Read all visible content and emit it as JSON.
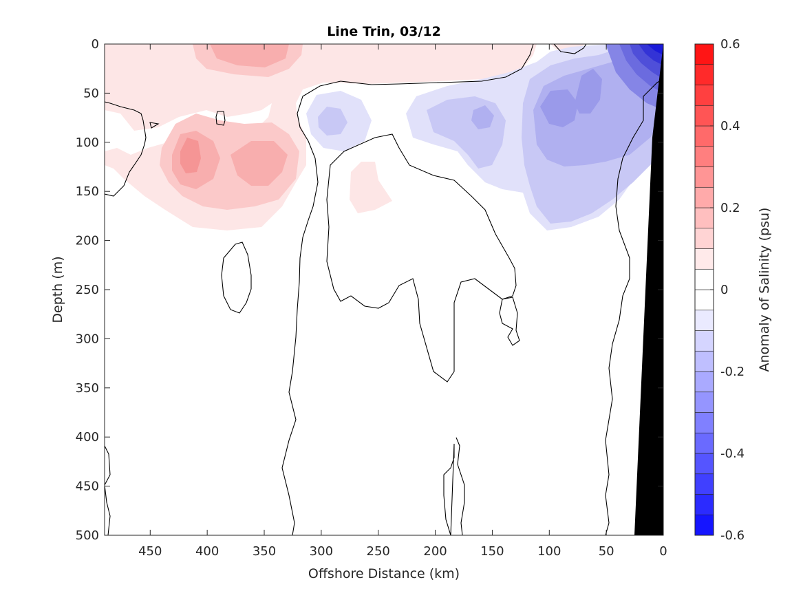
{
  "chart_data": {
    "type": "heatmap",
    "subtype": "filled-contour",
    "title": "Line Trin, 03/12",
    "xlabel": "Offshore Distance (km)",
    "ylabel": "Depth (m)",
    "x_direction": "reversed",
    "y_direction": "reversed",
    "xlim": [
      490,
      0
    ],
    "ylim": [
      0,
      500
    ],
    "x_ticks": [
      450,
      400,
      350,
      300,
      250,
      200,
      150,
      100,
      50,
      0
    ],
    "x_tick_labels": [
      "450",
      "400",
      "350",
      "300",
      "250",
      "200",
      "150",
      "100",
      "50",
      "0"
    ],
    "y_ticks": [
      0,
      50,
      100,
      150,
      200,
      250,
      300,
      350,
      400,
      450,
      500
    ],
    "y_tick_labels": [
      "0",
      "50",
      "100",
      "150",
      "200",
      "250",
      "300",
      "350",
      "400",
      "450",
      "500"
    ],
    "colorbar": {
      "label": "Anomaly of Salinity (psu)",
      "range": [
        -0.6,
        0.6
      ],
      "step": 0.05,
      "tick_values": [
        0.6,
        0.4,
        0.2,
        0,
        -0.2,
        -0.4,
        -0.6
      ],
      "tick_labels": [
        "0.6",
        "0.4",
        "0.2",
        "0",
        "-0.2",
        "-0.4",
        "-0.6"
      ],
      "colormap": "blue-white-red"
    },
    "features": [
      {
        "label": "positive anomaly near-surface band",
        "x_range": [
          490,
          130
        ],
        "depth_range": [
          0,
          30
        ],
        "value": 0.05
      },
      {
        "label": "positive anomaly core",
        "x_center": 410,
        "depth_center": 125,
        "value": 0.2
      },
      {
        "label": "positive anomaly core",
        "x_center": 350,
        "depth_center": 130,
        "value": 0.15
      },
      {
        "label": "positive anomaly surface core",
        "x_center": 360,
        "depth_center": 10,
        "value": 0.1
      },
      {
        "label": "positive anomaly patch",
        "x_center": 255,
        "depth_center": 150,
        "value": 0.05
      },
      {
        "label": "negative anomaly patch",
        "x_center": 290,
        "depth_center": 80,
        "value": -0.1
      },
      {
        "label": "negative anomaly patch",
        "x_center": 165,
        "depth_center": 90,
        "value": -0.1
      },
      {
        "label": "negative anomaly core",
        "x_center": 80,
        "depth_center": 85,
        "value": -0.2
      },
      {
        "label": "strong negative anomaly at coast",
        "x_center": 15,
        "depth_center": 15,
        "value": -0.55
      }
    ],
    "bathymetry": {
      "label": "seafloor mask",
      "color": "#000000",
      "x_at_top": 0,
      "x_at_bottom": 25
    }
  }
}
